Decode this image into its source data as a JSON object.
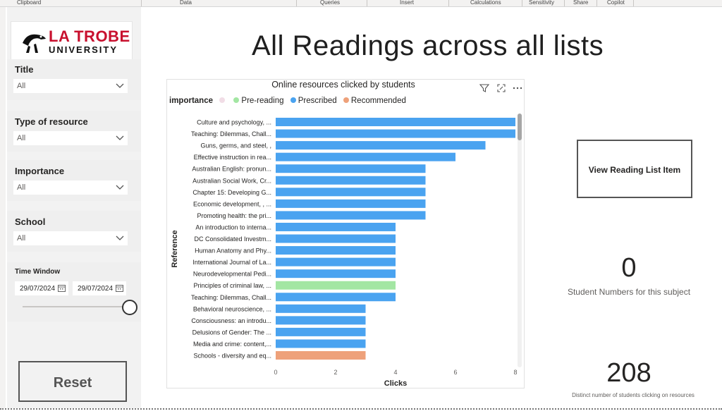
{
  "ribbon": {
    "groups": [
      "Clipboard",
      "Data",
      "Queries",
      "Insert",
      "Calculations",
      "Sensitivity",
      "Share",
      "Copilot"
    ]
  },
  "logo": {
    "line1": "LA TROBE",
    "line2": "UNIVERSITY"
  },
  "slicers": {
    "title": {
      "label": "Title",
      "value": "All"
    },
    "type": {
      "label": "Type of resource",
      "value": "All"
    },
    "importance": {
      "label": "Importance",
      "value": "All"
    },
    "school": {
      "label": "School",
      "value": "All"
    },
    "time_window": {
      "label": "Time Window",
      "start": "29/07/2024",
      "end": "29/07/2024",
      "slider_position": 1.0
    }
  },
  "reset_label": "Reset",
  "page_title": "All Readings across all lists",
  "view_button_label": "View Reading List Item",
  "cards": {
    "students": {
      "value": "0",
      "label": "Student Numbers for this subject"
    },
    "clicks": {
      "value": "208",
      "label": "Distinct number of students clicking on resources"
    }
  },
  "colors": {
    "prescribed": "#4aa3f0",
    "pre_reading": "#a3e6a3",
    "recommended": "#eea17a",
    "logo_red": "#c8102e"
  },
  "chart_data": {
    "type": "bar",
    "orientation": "horizontal",
    "title": "Online resources clicked by students",
    "xlabel": "Clicks",
    "ylabel": "Reference",
    "legend_title": "importance",
    "legend_position": "top-left",
    "legend": [
      {
        "name": "",
        "color": "#f1dde6"
      },
      {
        "name": "Pre-reading",
        "color": "#a3e6a3"
      },
      {
        "name": "Prescribed",
        "color": "#4aa3f0"
      },
      {
        "name": "Recommended",
        "color": "#eea17a"
      }
    ],
    "xlim": [
      0,
      8
    ],
    "xticks": [
      "0",
      "2",
      "4",
      "6",
      "8"
    ],
    "grid": false,
    "categories": [
      "Culture and psychology, ...",
      "Teaching: Dilemmas, Chall...",
      "Guns, germs, and steel, ,",
      "Effective instruction in rea...",
      "Australian English: pronun...",
      "Australian Social Work, Cr...",
      "Chapter 15: Developing G...",
      "Economic development, , ...",
      "Promoting health: the pri...",
      "An introduction to interna...",
      "DC Consolidated Investm...",
      "Human Anatomy and Phy...",
      "International Journal of La...",
      "Neurodevelopmental Pedi...",
      "Principles of criminal law, ...",
      "Teaching: Dilemmas, Chall...",
      "Behavioral neuroscience, ...",
      "Consciousness: an introdu...",
      "Delusions of Gender: The ...",
      "Media and crime: content,...",
      "Schools - diversity and eq..."
    ],
    "values": [
      8,
      8,
      7,
      6,
      5,
      5,
      5,
      5,
      5,
      4,
      4,
      4,
      4,
      4,
      4,
      4,
      3,
      3,
      3,
      3,
      3
    ],
    "importance": [
      "Prescribed",
      "Prescribed",
      "Prescribed",
      "Prescribed",
      "Prescribed",
      "Prescribed",
      "Prescribed",
      "Prescribed",
      "Prescribed",
      "Prescribed",
      "Prescribed",
      "Prescribed",
      "Prescribed",
      "Prescribed",
      "Pre-reading",
      "Prescribed",
      "Prescribed",
      "Prescribed",
      "Prescribed",
      "Prescribed",
      "Recommended"
    ]
  }
}
